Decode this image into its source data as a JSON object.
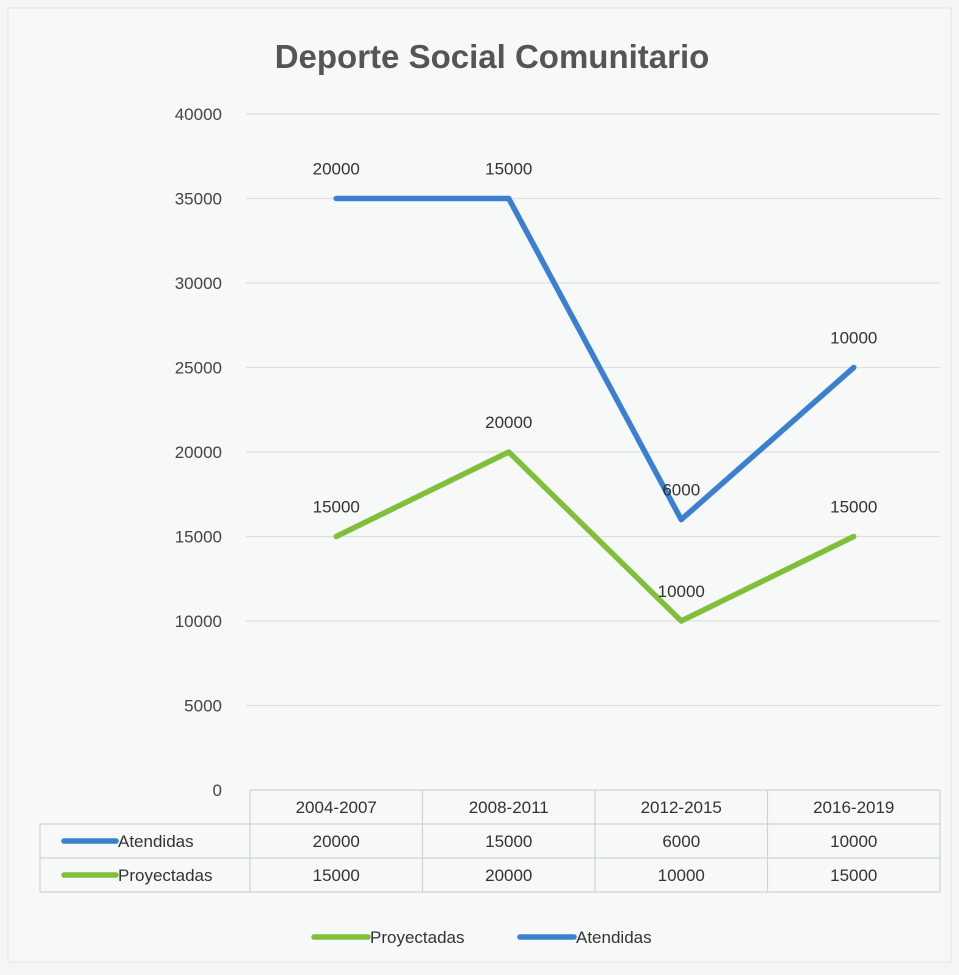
{
  "chart_data": {
    "type": "line",
    "title": "Deporte Social Comunitario",
    "categories": [
      "2004-2007",
      "2008-2011",
      "2012-2015",
      "2016-2019"
    ],
    "ylim": [
      0,
      40000
    ],
    "yticks": [
      0,
      5000,
      10000,
      15000,
      20000,
      25000,
      30000,
      35000,
      40000
    ],
    "series": [
      {
        "name": "Atendidas",
        "color": "#3b7fd0",
        "values": [
          35000,
          35000,
          16000,
          25000
        ],
        "data_labels": [
          "20000",
          "15000",
          "6000",
          "10000"
        ],
        "table_values": [
          "20000",
          "15000",
          "6000",
          "10000"
        ]
      },
      {
        "name": "Proyectadas",
        "color": "#7fbf3a",
        "values": [
          15000,
          20000,
          10000,
          15000
        ],
        "data_labels": [
          "15000",
          "20000",
          "10000",
          "15000"
        ],
        "table_values": [
          "15000",
          "20000",
          "10000",
          "15000"
        ]
      }
    ],
    "legend": {
      "position": "bottom",
      "order": [
        "Proyectadas",
        "Atendidas"
      ]
    },
    "grid": true
  }
}
